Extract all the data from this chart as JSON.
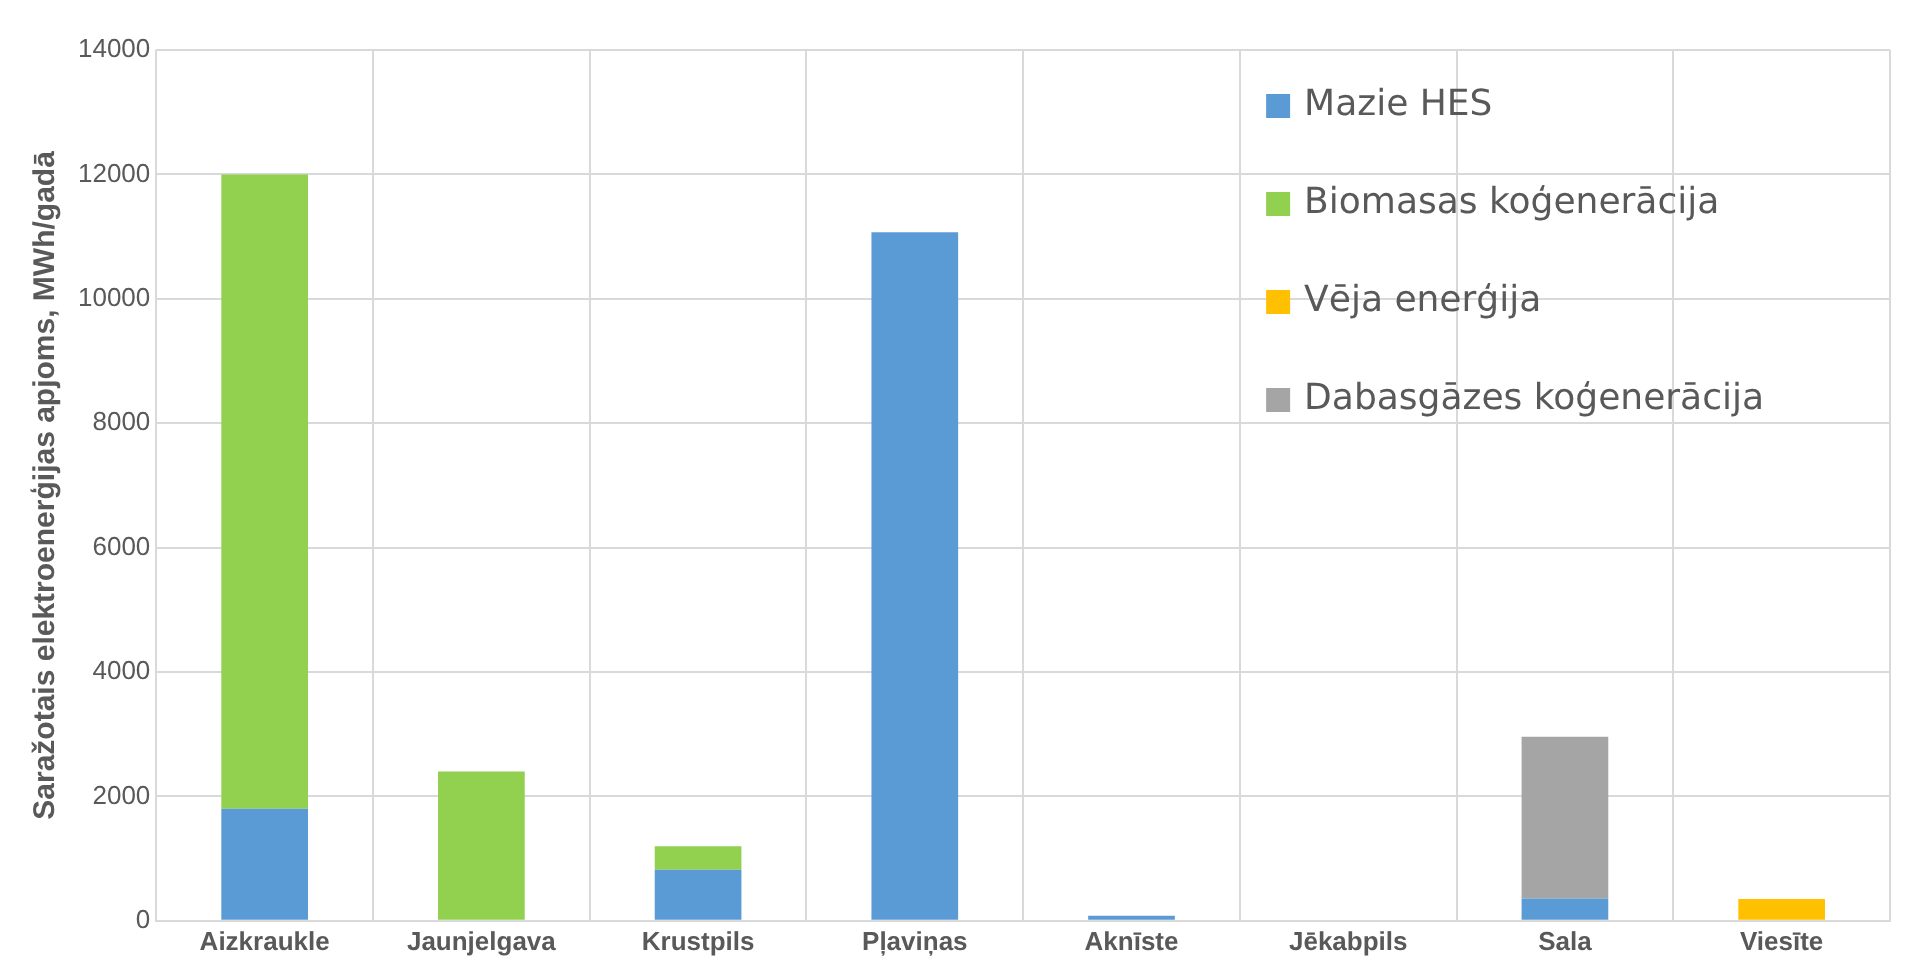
{
  "chart_data": {
    "type": "bar",
    "stacked": true,
    "ylabel": "Saražotais elektroenerģijas apjoms, MWh/gadā",
    "categories": [
      "Aizkraukle",
      "Jaunjelgava",
      "Krustpils",
      "Pļaviņas",
      "Aknīste",
      "Jēkabpils",
      "Sala",
      "Viesīte"
    ],
    "series": [
      {
        "name": "Mazie HES",
        "color": "#5b9bd5",
        "values": [
          1800,
          0,
          820,
          11070,
          80,
          0,
          360,
          0
        ]
      },
      {
        "name": "Biomasas koģenerācija",
        "color": "#92d050",
        "values": [
          10200,
          2400,
          380,
          0,
          0,
          0,
          0,
          0
        ]
      },
      {
        "name": "Vēja enerģija",
        "color": "#ffc000",
        "values": [
          0,
          0,
          0,
          0,
          0,
          0,
          0,
          350
        ]
      },
      {
        "name": "Dabasgāzes koģenerācija",
        "color": "#a5a5a5",
        "values": [
          0,
          0,
          0,
          0,
          0,
          0,
          2600,
          0
        ]
      }
    ],
    "ylim": [
      0,
      14000
    ],
    "yticks": [
      0,
      2000,
      4000,
      6000,
      8000,
      10000,
      12000,
      14000
    ],
    "grid": true,
    "legend": "top right"
  }
}
